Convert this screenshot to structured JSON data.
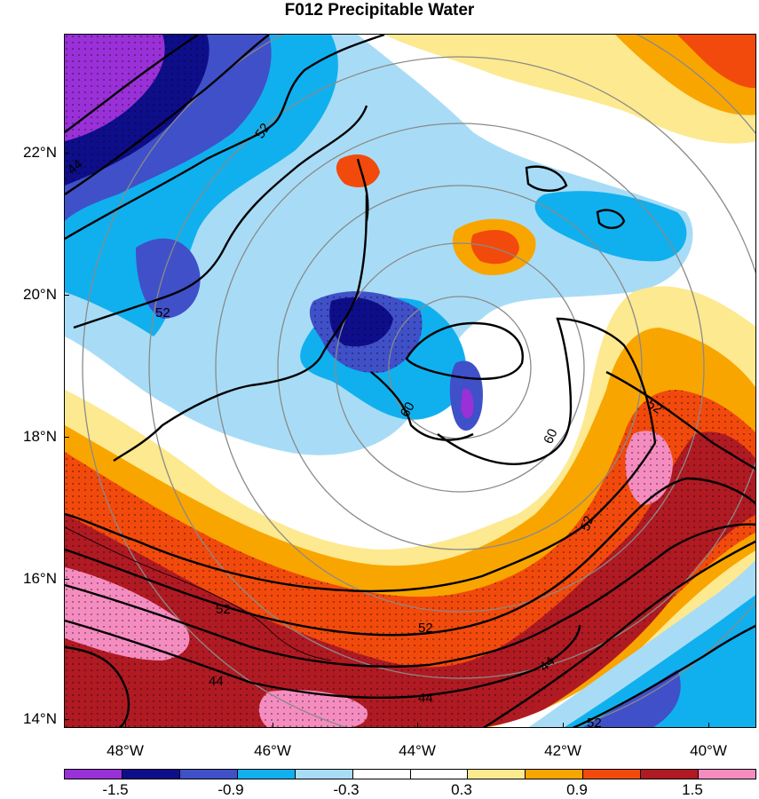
{
  "title": "F012 Precipitable Water",
  "latitude_labels": [
    "22°N",
    "20°N",
    "18°N",
    "16°N",
    "14°N"
  ],
  "longitude_labels": [
    "48°W",
    "46°W",
    "44°W",
    "42°W",
    "40°W"
  ],
  "contour_labels": [
    "52",
    "52",
    "60",
    "60",
    "52",
    "52",
    "52",
    "44",
    "44",
    "52",
    "52",
    "44",
    "44"
  ],
  "colorbar": {
    "colors": [
      "#9a30d8",
      "#0e0e8a",
      "#4050c8",
      "#10b0ee",
      "#a8dcf6",
      "#ffffff",
      "#ffffff",
      "#fde98f",
      "#f9a500",
      "#f24a0c",
      "#b01a22",
      "#f58cc0"
    ],
    "labels": [
      "-1.5",
      "-0.9",
      "-0.3",
      "0.3",
      "0.9",
      "1.5"
    ]
  }
}
